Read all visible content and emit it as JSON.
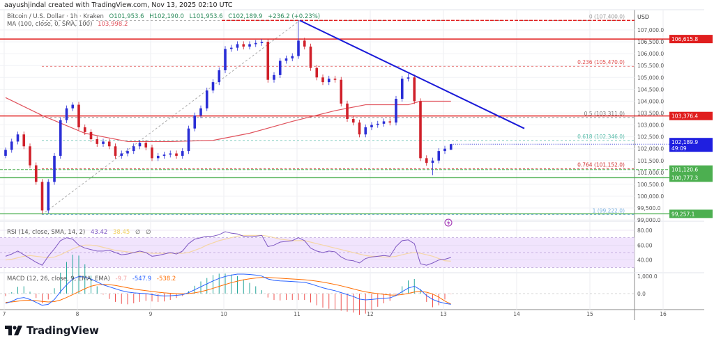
{
  "credit": "aayushjindal created with TradingView.com, Nov 13, 2025 02:10 UTC",
  "header": {
    "symbol": "Bitcoin / U.S. Dollar · 1h · Kraken",
    "open": "O101,953.6",
    "high": "H102,190.0",
    "low": "L101,953.6",
    "close": "C102,189.9",
    "change": "+236.2 (+0.23%)",
    "ma_label": "MA (100, close, 0, SMA, 100)",
    "ma_value": "103,998.2"
  },
  "colors": {
    "up": "#2a2ed6",
    "down": "#d0202a",
    "ma": "#e0525c",
    "trend": "#1a1ad8",
    "support": "#4caf50",
    "resistance": "#e01e1e",
    "rsi": "#7e57c2",
    "rsi_ma": "#f5d6a6",
    "macd": "#2962ff",
    "signal": "#ff6d00",
    "rsi_band": "#f1e4fd"
  },
  "chart_data": [
    {
      "type": "candlestick",
      "currency_label": "USD",
      "x_ticks": [
        "7",
        "8",
        "9",
        "10",
        "11",
        "12",
        "13",
        "14",
        "15",
        "16"
      ],
      "y_ticks": [
        "107,000.0",
        "106,500.0",
        "106,000.0",
        "105,500.0",
        "105,000.0",
        "104,500.0",
        "104,000.0",
        "103,500.0",
        "103,000.0",
        "102,500.0",
        "102,000.0",
        "101,500.0",
        "101,000.0",
        "100,500.0",
        "100,000.0",
        "99,500.0",
        "99,000.0"
      ],
      "y_tick_values": [
        107000,
        106500,
        106000,
        105500,
        105000,
        104500,
        104000,
        103500,
        103000,
        102500,
        102000,
        101500,
        101000,
        100500,
        100000,
        99500,
        99000
      ],
      "ylim": [
        98900,
        107700
      ],
      "candles": [
        [
          101700,
          102050,
          101600,
          101950
        ],
        [
          101950,
          102420,
          101830,
          102300
        ],
        [
          102300,
          102720,
          102180,
          102600
        ],
        [
          102600,
          102720,
          101980,
          102100
        ],
        [
          102100,
          102220,
          101180,
          101300
        ],
        [
          101300,
          101420,
          100480,
          100600
        ],
        [
          100600,
          100720,
          99257,
          99400
        ],
        [
          99400,
          100720,
          99280,
          100600
        ],
        [
          100600,
          101820,
          100480,
          101700
        ],
        [
          101700,
          103320,
          101580,
          103200
        ],
        [
          103200,
          103820,
          103080,
          103700
        ],
        [
          103700,
          103950,
          103580,
          103850
        ],
        [
          103850,
          103970,
          102780,
          102900
        ],
        [
          102900,
          103020,
          102580,
          102700
        ],
        [
          102700,
          102820,
          102280,
          102400
        ],
        [
          102400,
          102520,
          102080,
          102200
        ],
        [
          102200,
          102420,
          102080,
          102300
        ],
        [
          102300,
          102420,
          101980,
          102100
        ],
        [
          102100,
          102220,
          101580,
          101700
        ],
        [
          101700,
          101920,
          101580,
          101800
        ],
        [
          101800,
          102020,
          101680,
          101900
        ],
        [
          101900,
          102220,
          101780,
          102100
        ],
        [
          102100,
          102370,
          101980,
          102250
        ],
        [
          102250,
          102370,
          101930,
          102050
        ],
        [
          102050,
          102170,
          101480,
          101600
        ],
        [
          101600,
          101820,
          101480,
          101700
        ],
        [
          101700,
          101870,
          101580,
          101750
        ],
        [
          101750,
          101920,
          101630,
          101800
        ],
        [
          101800,
          101920,
          101580,
          101700
        ],
        [
          101700,
          102020,
          101580,
          101900
        ],
        [
          101900,
          102970,
          101780,
          102850
        ],
        [
          102850,
          103520,
          102730,
          103400
        ],
        [
          103400,
          103820,
          103280,
          103700
        ],
        [
          103700,
          104570,
          103580,
          104450
        ],
        [
          104450,
          104920,
          104330,
          104800
        ],
        [
          104800,
          105420,
          104680,
          105300
        ],
        [
          105300,
          106320,
          105180,
          106200
        ],
        [
          106200,
          106370,
          106080,
          106250
        ],
        [
          106250,
          106520,
          106130,
          106400
        ],
        [
          106400,
          106520,
          106180,
          106300
        ],
        [
          106300,
          106520,
          106180,
          106400
        ],
        [
          106400,
          106570,
          106280,
          106450
        ],
        [
          106450,
          106620,
          106330,
          106500
        ],
        [
          106500,
          106620,
          104780,
          104900
        ],
        [
          104900,
          105220,
          104780,
          105100
        ],
        [
          105100,
          105820,
          104980,
          105700
        ],
        [
          105700,
          105920,
          105580,
          105800
        ],
        [
          105800,
          106020,
          105680,
          105900
        ],
        [
          105900,
          107400,
          105780,
          106550
        ],
        [
          106550,
          106670,
          106180,
          106300
        ],
        [
          106300,
          106420,
          105280,
          105400
        ],
        [
          105400,
          105520,
          104880,
          105000
        ],
        [
          105000,
          105120,
          104680,
          104800
        ],
        [
          104800,
          105070,
          104680,
          104950
        ],
        [
          104950,
          105070,
          104780,
          104900
        ],
        [
          104900,
          105020,
          103780,
          103900
        ],
        [
          103900,
          104020,
          103130,
          103250
        ],
        [
          103250,
          103370,
          102980,
          103100
        ],
        [
          103100,
          103220,
          102480,
          102600
        ],
        [
          102600,
          103020,
          102480,
          102900
        ],
        [
          102900,
          103120,
          102780,
          103000
        ],
        [
          103000,
          103170,
          102880,
          103050
        ],
        [
          103050,
          103270,
          102930,
          103150
        ],
        [
          103150,
          103270,
          102980,
          103100
        ],
        [
          103100,
          104220,
          102980,
          104100
        ],
        [
          104100,
          105070,
          103980,
          104950
        ],
        [
          104950,
          105150,
          104830,
          105000
        ],
        [
          105000,
          105120,
          103880,
          104000
        ],
        [
          104000,
          104120,
          101480,
          101600
        ],
        [
          101600,
          101720,
          101280,
          101400
        ],
        [
          101400,
          101620,
          100880,
          101500
        ],
        [
          101500,
          102020,
          101380,
          101900
        ],
        [
          101900,
          102120,
          101780,
          102000
        ],
        [
          101953.6,
          102190,
          101953.6,
          102189.9
        ]
      ],
      "ma100": [
        [
          0,
          104150
        ],
        [
          6,
          103400
        ],
        [
          13,
          102650
        ],
        [
          20,
          102300
        ],
        [
          27,
          102300
        ],
        [
          34,
          102350
        ],
        [
          40,
          102650
        ],
        [
          47,
          103150
        ],
        [
          54,
          103600
        ],
        [
          59,
          103850
        ],
        [
          66,
          103850
        ],
        [
          68,
          104000
        ],
        [
          73,
          103998.2
        ]
      ],
      "horizontal_levels": [
        {
          "price": 106615.8,
          "label": "106,615.8",
          "style": "solid",
          "color": "#e01e1e"
        },
        {
          "price": 103376.4,
          "label": "103,376.4",
          "style": "solid",
          "color": "#e01e1e"
        },
        {
          "price": 101120.6,
          "label": "101,120.6",
          "style": "dashed",
          "color": "#4caf50"
        },
        {
          "price": 100777.3,
          "label": "100,777.3",
          "style": "solid",
          "color": "#4caf50"
        },
        {
          "price": 99257.1,
          "label": "99,257.1",
          "style": "solid",
          "color": "#4caf50"
        }
      ],
      "fib_levels": [
        {
          "price": 107400,
          "label": "0 (107,400.0)",
          "color": "#999999"
        },
        {
          "price": 105470,
          "label": "0.236 (105,470.0)",
          "color": "#e05050"
        },
        {
          "price": 103311,
          "label": "0.5 (103,311.0)",
          "color": "#777777"
        },
        {
          "price": 102346,
          "label": "0.618 (102,346.0)",
          "color": "#55bba8"
        },
        {
          "price": 101152,
          "label": "0.764 (101,152.0)",
          "color": "#d03030"
        },
        {
          "price": 99222,
          "label": "1 (99,222.0)",
          "color": "#7ab0e0"
        }
      ],
      "last_price": {
        "label": "102,189.9",
        "countdown": "49:09"
      },
      "trendline": {
        "from": [
          48,
          107400
        ],
        "to": [
          85,
          102850
        ]
      }
    },
    {
      "type": "line",
      "title": "RSI (14, close, SMA, 14, 2)",
      "values_label": [
        "43.42",
        "38.45",
        "∅",
        "∅"
      ],
      "y_ticks": [
        "80.00",
        "60.00",
        "40.00"
      ],
      "bands": [
        30,
        50,
        70
      ],
      "rsi": [
        45,
        48,
        52,
        47,
        42,
        37,
        33,
        45,
        55,
        66,
        70,
        68,
        60,
        56,
        54,
        52,
        52,
        53,
        50,
        47,
        48,
        50,
        52,
        50,
        45,
        46,
        48,
        50,
        48,
        52,
        62,
        68,
        70,
        72,
        72,
        74,
        78,
        76,
        75,
        72,
        71,
        72,
        73,
        58,
        60,
        64,
        65,
        66,
        70,
        66,
        56,
        52,
        50,
        52,
        51,
        44,
        40,
        39,
        36,
        42,
        44,
        45,
        46,
        45,
        58,
        66,
        67,
        62,
        35,
        33,
        36,
        40,
        41,
        43.42
      ],
      "rsi_ma": [
        40,
        41,
        43,
        45,
        46,
        45,
        44,
        43,
        44,
        47,
        51,
        55,
        58,
        60,
        60,
        59,
        57,
        55,
        53,
        52,
        51,
        50,
        50,
        50,
        49,
        49,
        49,
        49,
        49,
        49,
        50,
        53,
        56,
        60,
        63,
        66,
        68,
        70,
        72,
        73,
        73,
        73,
        73,
        72,
        70,
        68,
        67,
        66,
        66,
        66,
        64,
        62,
        60,
        58,
        56,
        54,
        52,
        50,
        48,
        46,
        45,
        45,
        44,
        44,
        45,
        47,
        49,
        50,
        49,
        47,
        45,
        42,
        39,
        38.45
      ]
    },
    {
      "type": "line",
      "title": "MACD (12, 26, close, 9, EMA, EMA)",
      "values_label": [
        "-9.7",
        "-547.9",
        "-538.2"
      ],
      "y_ticks": [
        "1,000.0",
        "0.0"
      ],
      "macd": [
        -500,
        -400,
        -250,
        -200,
        -300,
        -450,
        -600,
        -550,
        -300,
        100,
        450,
        750,
        880,
        850,
        750,
        600,
        450,
        350,
        250,
        150,
        80,
        40,
        20,
        0,
        -50,
        -100,
        -120,
        -110,
        -90,
        -60,
        50,
        200,
        350,
        500,
        650,
        780,
        880,
        950,
        1000,
        1000,
        980,
        950,
        900,
        750,
        680,
        650,
        640,
        620,
        600,
        580,
        500,
        400,
        300,
        220,
        150,
        50,
        -50,
        -150,
        -280,
        -320,
        -300,
        -270,
        -240,
        -220,
        -100,
        100,
        280,
        380,
        200,
        -100,
        -300,
        -420,
        -500,
        -547.9
      ],
      "signal": [
        -450,
        -430,
        -390,
        -350,
        -340,
        -360,
        -400,
        -430,
        -410,
        -330,
        -200,
        -50,
        100,
        250,
        380,
        450,
        470,
        460,
        420,
        360,
        300,
        240,
        190,
        150,
        110,
        70,
        40,
        20,
        0,
        -10,
        0,
        40,
        100,
        180,
        270,
        370,
        470,
        560,
        640,
        710,
        760,
        800,
        830,
        830,
        810,
        790,
        770,
        750,
        730,
        710,
        680,
        640,
        590,
        530,
        470,
        400,
        320,
        240,
        160,
        90,
        40,
        0,
        -40,
        -70,
        -80,
        -50,
        10,
        80,
        110,
        70,
        -20,
        -180,
        -380,
        -538.2
      ]
    }
  ],
  "logo": {
    "text": "TradingView",
    "icon": "tradingview-logo-icon"
  },
  "alert_icon": "lightning-icon"
}
